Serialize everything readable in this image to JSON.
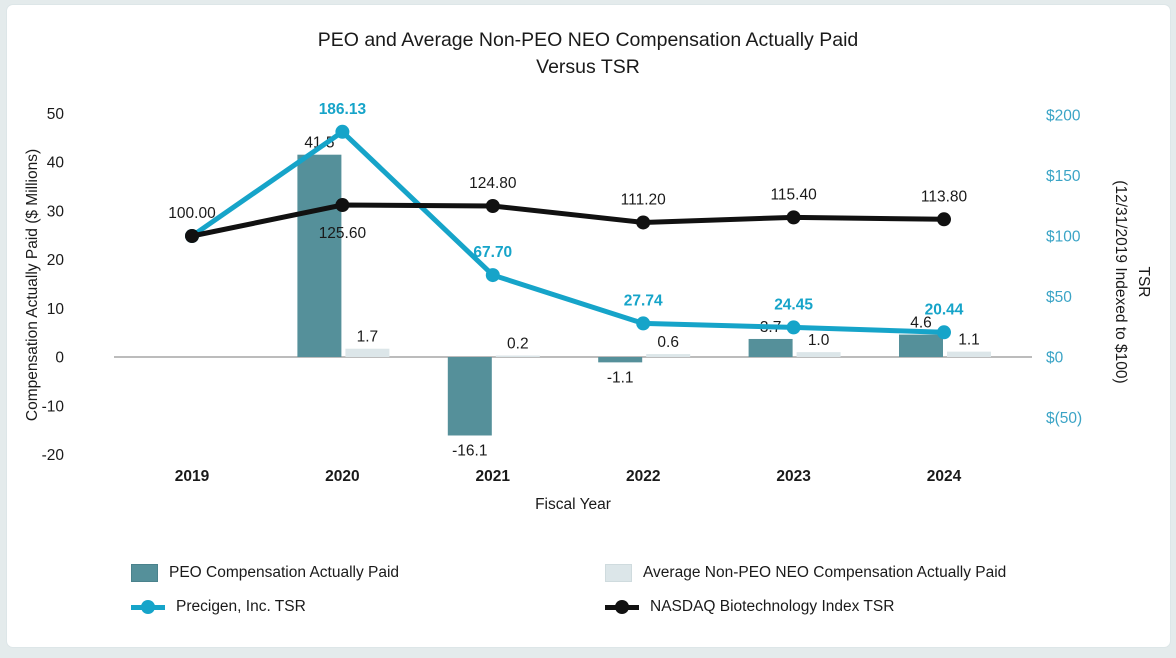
{
  "chart_data": {
    "type": "combo_bar_line",
    "title": "PEO and Average Non-PEO NEO Compensation Actually Paid Versus TSR",
    "title_lines": [
      "PEO and Average Non-PEO NEO Compensation Actually Paid",
      "Versus TSR"
    ],
    "categories": [
      "2019",
      "2020",
      "2021",
      "2022",
      "2023",
      "2024"
    ],
    "x_axis": {
      "title": "Fiscal Year"
    },
    "left_axis": {
      "title": "Compensation Actually Paid ($ Millions)",
      "range": [
        -20,
        50
      ],
      "ticks": [
        {
          "label": "50",
          "value": 50
        },
        {
          "label": "40",
          "value": 40
        },
        {
          "label": "30",
          "value": 30
        },
        {
          "label": "20",
          "value": 20
        },
        {
          "label": "10",
          "value": 10
        },
        {
          "label": "0",
          "value": 0
        },
        {
          "label": "-10",
          "value": -10
        },
        {
          "label": "-20",
          "value": -20
        }
      ]
    },
    "right_axis": {
      "title": "TSR (12/31/2019 Indexed to $100)",
      "title_lines": [
        "TSR",
        "(12/31/2019 Indexed to $100)"
      ],
      "range": [
        -50,
        200
      ],
      "ticks": [
        {
          "label": "$200",
          "value": 200
        },
        {
          "label": "$150",
          "value": 150
        },
        {
          "label": "$100",
          "value": 100
        },
        {
          "label": "$50",
          "value": 50
        },
        {
          "label": "$0",
          "value": 0
        },
        {
          "label": "$(50)",
          "value": -50
        }
      ]
    },
    "bar_series": [
      {
        "name": "PEO Compensation Actually Paid",
        "slug": "peo",
        "axis": "left",
        "color": "#55909A",
        "values": [
          null,
          41.5,
          -16.1,
          -1.1,
          3.7,
          4.6
        ],
        "labels": [
          "",
          "41.5",
          "-16.1",
          "-1.1",
          "3.7",
          "4.6"
        ]
      },
      {
        "name": "Average Non-PEO NEO Compensation Actually Paid",
        "slug": "neo",
        "axis": "left",
        "color": "#DCE6E9",
        "values": [
          null,
          1.7,
          0.2,
          0.6,
          1.0,
          1.1
        ],
        "labels": [
          "",
          "1.7",
          "0.2",
          "0.6",
          "1.0",
          "1.1"
        ]
      }
    ],
    "line_series": [
      {
        "name": "Precigen, Inc. TSR",
        "slug": "precigen",
        "axis": "right",
        "color": "#16A4C9",
        "label_color": "#16A4C9",
        "bold_labels": true,
        "values": [
          100.0,
          186.13,
          67.7,
          27.74,
          24.45,
          20.44
        ],
        "labels": [
          "",
          "186.13",
          "67.70",
          "27.74",
          "24.45",
          "20.44"
        ],
        "label_side": [
          "above",
          "above",
          "above",
          "above",
          "above",
          "above"
        ]
      },
      {
        "name": "NASDAQ Biotechnology Index TSR",
        "slug": "nasdaq",
        "axis": "right",
        "color": "#111111",
        "label_color": "#1A1A1A",
        "bold_labels": false,
        "values": [
          100.0,
          125.6,
          124.8,
          111.2,
          115.4,
          113.8
        ],
        "labels": [
          "100.00",
          "125.60",
          "124.80",
          "111.20",
          "115.40",
          "113.80"
        ],
        "label_side": [
          "above",
          "below",
          "above",
          "above",
          "above",
          "above"
        ]
      }
    ],
    "colors": {
      "text": "#1A1A1A",
      "axis_line": "#A6A6A6",
      "right_tick_blue": "#3BA4C6"
    },
    "grid": false,
    "legend_position": "bottom"
  },
  "legend": {
    "items": [
      {
        "label": "PEO Compensation Actually Paid",
        "swatch": "bar",
        "color": "#55909A"
      },
      {
        "label": "Average Non-PEO NEO Compensation Actually Paid",
        "swatch": "bar",
        "color": "#DCE6E9"
      },
      {
        "label": "Precigen, Inc. TSR",
        "swatch": "line",
        "color": "#16A4C9"
      },
      {
        "label": "NASDAQ Biotechnology Index TSR",
        "swatch": "line",
        "color": "#111111"
      }
    ]
  }
}
